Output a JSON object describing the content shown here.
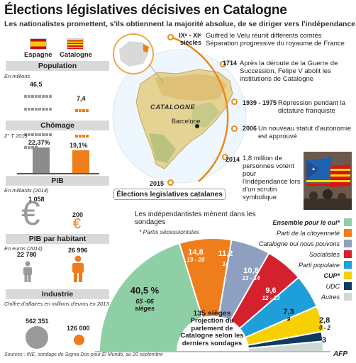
{
  "header": {
    "title": "Élections législatives décisives en Catalogne",
    "subtitle": "Les nationalistes promettent, s'ils obtiennent la majorité absolue, de se diriger vers l'indépendance"
  },
  "flags": {
    "spain": "Espagne",
    "catalonia": "Catalogne"
  },
  "population": {
    "heading": "Population",
    "unit": "En millions",
    "spain": "46,5",
    "catalonia": "7,4"
  },
  "chomage": {
    "heading": "Chômage",
    "period": "2° T 2015",
    "spain": "22,37%",
    "catalonia": "19,1%"
  },
  "pib": {
    "heading": "PIB",
    "unit": "En milliards (2014)",
    "spain": "1 058",
    "catalonia": "200",
    "symbol": "€"
  },
  "pib_habitant": {
    "heading": "PIB par habitant",
    "unit": "En euros (2014)",
    "spain": "22 780",
    "catalonia": "26 996"
  },
  "industrie": {
    "heading": "Industrie",
    "unit": "Chiffre d'affaires en millions d'euros en 2013",
    "spain": "562 351",
    "catalonia": "126 000"
  },
  "map": {
    "region_label": "CATALOGNE",
    "city_label": "Barcelone"
  },
  "timeline": [
    {
      "date": "IXᵉ - XIᵉ siècles",
      "text": "Guifred le Velu réunit différents comtés Séparation progressive du royaume de France"
    },
    {
      "date": "1714",
      "text": "Après la déroute de la Guerre de Succession, Felipe V abolit les institutions de Catalogne"
    },
    {
      "date": "1939 - 1975",
      "text": "Répression pendant la dictature franquiste"
    },
    {
      "date": "2006",
      "text": "Un nouveau statut d'autonomie est approuvé"
    },
    {
      "date": "2014",
      "text": "1,8 million de personnes votent pour l'indépendance lors d'un scrutin symbolique"
    },
    {
      "date": "2015",
      "text": ""
    }
  ],
  "elections": {
    "heading": "Élections legislatives catalanes",
    "note": "Les indépendantistes mènent dans les sondages",
    "note_sub": "* Partis sécessionistes",
    "center_seats": "135 sièges",
    "center_text": "Projection du parlement de Catalogne selon les derniers sondages",
    "sieges_word": "sièges"
  },
  "chart_data": {
    "type": "pie",
    "title": "Élections legislatives catalanes",
    "total_seats": 135,
    "series": [
      {
        "name": "Ensemble pour le oui*",
        "value": 40.5,
        "label": "40,5 %",
        "range": "65 -66",
        "color": "#8fcfa6"
      },
      {
        "name": "Parti de la citoyenneté",
        "value": 14.8,
        "label": "14,8",
        "range": "19 - 20",
        "color": "#ef7d1b"
      },
      {
        "name": "Catalogne oui nous pouvons",
        "value": 11.2,
        "label": "11,2",
        "range": "14",
        "color": "#8e9fbf"
      },
      {
        "name": "Socialistes",
        "value": 10.8,
        "label": "10,8",
        "range": "13 - 14",
        "color": "#d5202e"
      },
      {
        "name": "Parti populaire",
        "value": 9.6,
        "label": "9,6",
        "range": "12 - 13",
        "color": "#1e9fd9"
      },
      {
        "name": "CUP*",
        "value": 7.3,
        "label": "7,3",
        "range": "9",
        "color": "#f6d000"
      },
      {
        "name": "UDC",
        "value": 2.8,
        "label": "2,8",
        "range": "0 - 2",
        "color": "#103a5e"
      },
      {
        "name": "Autres",
        "value": 3,
        "label": "3",
        "range": "",
        "color": "#cfd8d5"
      }
    ]
  },
  "footer": {
    "sources": "Sources : INE, sondage de Sigma Dos pour El Mundo, au 20 septembre",
    "agency": "AFP"
  }
}
